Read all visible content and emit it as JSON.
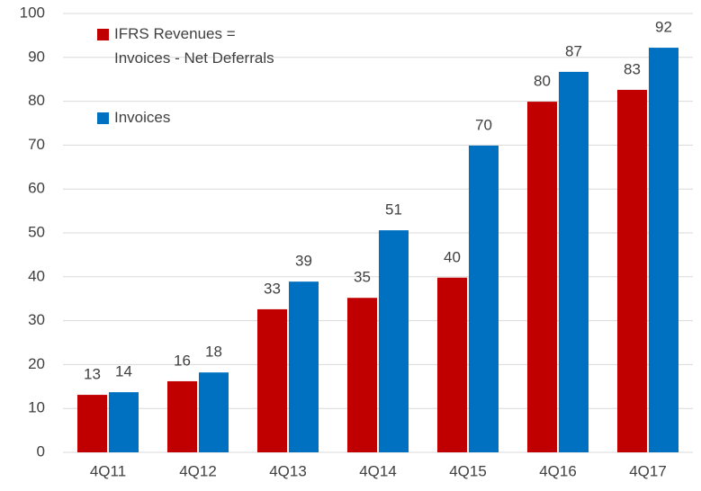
{
  "chart_data": {
    "type": "bar",
    "categories": [
      "4Q11",
      "4Q12",
      "4Q13",
      "4Q14",
      "4Q15",
      "4Q16",
      "4Q17"
    ],
    "series": [
      {
        "name": "IFRS Revenues =\nInvoices - Net Deferrals",
        "color": "#c00000",
        "values": [
          13.1,
          16.2,
          32.6,
          35.2,
          39.8,
          79.9,
          82.6
        ],
        "value_labels": [
          "13",
          "16",
          "33",
          "35",
          "40",
          "80",
          "83"
        ]
      },
      {
        "name": "Invoices",
        "color": "#0070c0",
        "values": [
          13.7,
          18.2,
          38.9,
          50.6,
          69.9,
          86.7,
          92.2
        ],
        "value_labels": [
          "14",
          "18",
          "39",
          "51",
          "70",
          "87",
          "92"
        ]
      }
    ],
    "ylim": [
      0,
      100
    ],
    "yticks": [
      0,
      10,
      20,
      30,
      40,
      50,
      60,
      70,
      80,
      90,
      100
    ],
    "grid": true
  }
}
